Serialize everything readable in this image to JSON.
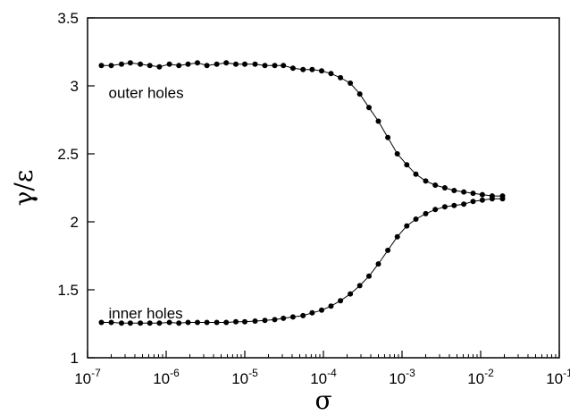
{
  "chart_data": {
    "type": "line",
    "title": "",
    "xlabel": "σ",
    "ylabel": "γ/ε",
    "xscale": "log",
    "xlim": [
      1e-07,
      0.1
    ],
    "ylim": [
      1,
      3.5
    ],
    "grid": false,
    "legend": "none",
    "marker": "filled-circle",
    "color": "#000000",
    "x_ticks": [
      {
        "value": 1e-07,
        "mantissa": "10",
        "exponent": "-7"
      },
      {
        "value": 1e-06,
        "mantissa": "10",
        "exponent": "-6"
      },
      {
        "value": 1e-05,
        "mantissa": "10",
        "exponent": "-5"
      },
      {
        "value": 0.0001,
        "mantissa": "10",
        "exponent": "-4"
      },
      {
        "value": 0.001,
        "mantissa": "10",
        "exponent": "-3"
      },
      {
        "value": 0.01,
        "mantissa": "10",
        "exponent": "-2"
      },
      {
        "value": 0.1,
        "mantissa": "10",
        "exponent": "-1"
      }
    ],
    "y_ticks": [
      {
        "value": 1,
        "label": "1"
      },
      {
        "value": 1.5,
        "label": "1.5"
      },
      {
        "value": 2,
        "label": "2"
      },
      {
        "value": 2.5,
        "label": "2.5"
      },
      {
        "value": 3,
        "label": "3"
      },
      {
        "value": 3.5,
        "label": "3.5"
      }
    ],
    "annotations": [
      {
        "text": "outer holes",
        "x": 1.5e-07,
        "y": 2.95
      },
      {
        "text": "inner holes",
        "x": 1.5e-07,
        "y": 1.33
      }
    ],
    "series": [
      {
        "x": [
          1.5e-07,
          2e-07,
          2.7e-07,
          3.5e-07,
          4.7e-07,
          6.2e-07,
          8.2e-07,
          1.1e-06,
          1.45e-06,
          1.9e-06,
          2.5e-06,
          3.3e-06,
          4.4e-06,
          5.8e-06,
          7.7e-06,
          1e-05,
          1.35e-05,
          1.8e-05,
          2.4e-05,
          3.1e-05,
          4.1e-05,
          5.5e-05,
          7.2e-05,
          9.5e-05,
          0.000125,
          0.000165,
          0.00022,
          0.00029,
          0.00038,
          0.0005,
          0.00066,
          0.00087,
          0.00115,
          0.0015,
          0.002,
          0.00265,
          0.0035,
          0.0046,
          0.0061,
          0.008,
          0.0105,
          0.014,
          0.019
        ],
        "y": [
          3.15,
          3.15,
          3.16,
          3.17,
          3.16,
          3.15,
          3.14,
          3.16,
          3.15,
          3.16,
          3.17,
          3.15,
          3.16,
          3.17,
          3.16,
          3.16,
          3.16,
          3.15,
          3.15,
          3.15,
          3.13,
          3.12,
          3.12,
          3.11,
          3.09,
          3.06,
          3.02,
          2.94,
          2.84,
          2.74,
          2.62,
          2.5,
          2.42,
          2.35,
          2.3,
          2.27,
          2.25,
          2.23,
          2.22,
          2.21,
          2.2,
          2.19,
          2.19
        ]
      },
      {
        "x": [
          1.5e-07,
          2e-07,
          2.7e-07,
          3.5e-07,
          4.7e-07,
          6.2e-07,
          8.2e-07,
          1.1e-06,
          1.45e-06,
          1.9e-06,
          2.5e-06,
          3.3e-06,
          4.4e-06,
          5.8e-06,
          7.7e-06,
          1e-05,
          1.35e-05,
          1.8e-05,
          2.4e-05,
          3.1e-05,
          4.1e-05,
          5.5e-05,
          7.2e-05,
          9.5e-05,
          0.000125,
          0.000165,
          0.00022,
          0.00029,
          0.00038,
          0.0005,
          0.00066,
          0.00087,
          0.00115,
          0.0015,
          0.002,
          0.00265,
          0.0035,
          0.0046,
          0.0061,
          0.008,
          0.0105,
          0.014,
          0.019
        ],
        "y": [
          1.26,
          1.26,
          1.255,
          1.255,
          1.255,
          1.255,
          1.255,
          1.26,
          1.255,
          1.26,
          1.26,
          1.26,
          1.26,
          1.26,
          1.265,
          1.265,
          1.27,
          1.275,
          1.28,
          1.29,
          1.3,
          1.31,
          1.33,
          1.35,
          1.38,
          1.42,
          1.47,
          1.53,
          1.6,
          1.69,
          1.79,
          1.89,
          1.97,
          2.02,
          2.06,
          2.09,
          2.11,
          2.12,
          2.13,
          2.15,
          2.16,
          2.17,
          2.17
        ]
      }
    ]
  }
}
